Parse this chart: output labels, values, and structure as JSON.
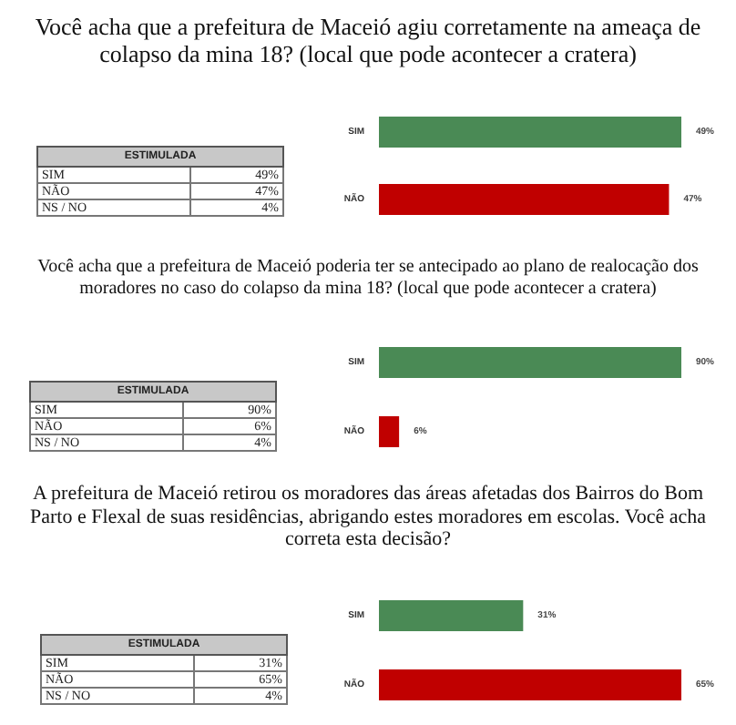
{
  "chart_data": [
    {
      "type": "bar",
      "orientation": "horizontal",
      "title": "Você acha que a prefeitura de Maceió agiu corretamente na ameaça de colapso da mina 18? (local que pode acontecer a cratera)",
      "categories": [
        "SIM",
        "NÃO"
      ],
      "values": [
        49,
        47
      ],
      "colors": [
        "#4a8a55",
        "#c00000"
      ],
      "value_labels": [
        "49%",
        "47%"
      ]
    },
    {
      "type": "other",
      "title": "ESTIMULADA",
      "categories": [
        "SIM",
        "NÃO",
        "NS / NO"
      ],
      "value_labels": [
        "49%",
        "47%",
        "4%"
      ]
    },
    {
      "type": "bar",
      "orientation": "horizontal",
      "title": "Você acha que a prefeitura de Maceió poderia ter se antecipado ao plano de realocação dos moradores no caso do colapso da mina 18? (local que pode acontecer a cratera)",
      "categories": [
        "SIM",
        "NÃO"
      ],
      "values": [
        90,
        6
      ],
      "colors": [
        "#4a8a55",
        "#c00000"
      ],
      "value_labels": [
        "90%",
        "6%"
      ]
    },
    {
      "type": "other",
      "title": "ESTIMULADA",
      "categories": [
        "SIM",
        "NÃO",
        "NS / NO"
      ],
      "value_labels": [
        "90%",
        "6%",
        "4%"
      ]
    },
    {
      "type": "bar",
      "orientation": "horizontal",
      "title": "A prefeitura de Maceió retirou os moradores das áreas afetadas dos Bairros do Bom Parto e Flexal de suas residências, abrigando estes moradores em escolas. Você acha correta esta decisão?",
      "categories": [
        "SIM",
        "NÃO"
      ],
      "values": [
        31,
        65
      ],
      "colors": [
        "#4a8a55",
        "#c00000"
      ],
      "value_labels": [
        "31%",
        "65%"
      ]
    },
    {
      "type": "other",
      "title": "ESTIMULADA",
      "categories": [
        "SIM",
        "NÃO",
        "NS / NO"
      ],
      "value_labels": [
        "31%",
        "65%",
        "4%"
      ]
    }
  ]
}
